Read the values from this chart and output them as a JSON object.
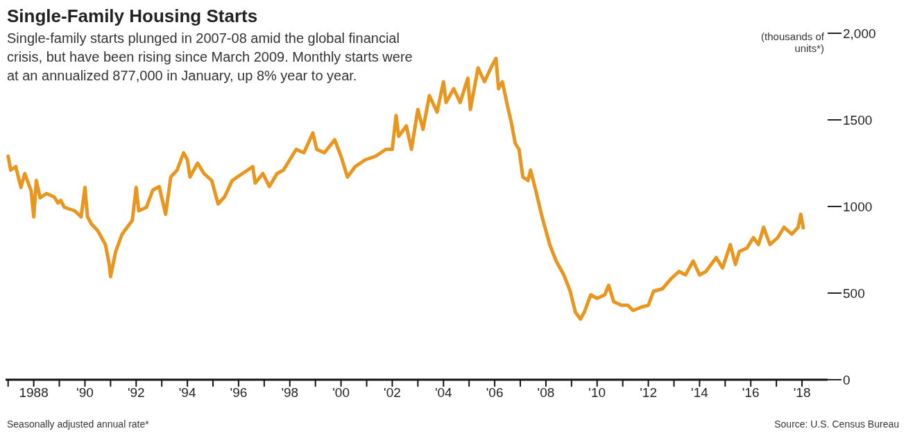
{
  "chart_data": {
    "type": "line",
    "title": "Single-Family Housing Starts",
    "subtitle": "Single-family starts plunged in 2007-08 amid the global financial crisis, but have been rising since March 2009. Monthly starts were at an annualized 877,000 in January, up 8% year to year.",
    "ylabel": "(thousands of units*)",
    "annotations": [
      "Seasonally adjusted annual rate*",
      "Source: U.S. Census Bureau"
    ],
    "x": [
      1987.0,
      1987.1,
      1987.3,
      1987.5,
      1987.65,
      1987.9,
      1988.0,
      1988.1,
      1988.25,
      1988.5,
      1988.8,
      1988.95,
      1989.05,
      1989.2,
      1989.6,
      1989.85,
      1990.0,
      1990.1,
      1990.25,
      1990.5,
      1990.8,
      1990.95,
      1991.0,
      1991.2,
      1991.45,
      1991.85,
      1992.0,
      1992.1,
      1992.4,
      1992.65,
      1992.9,
      1993.15,
      1993.35,
      1993.6,
      1993.85,
      1994.0,
      1994.1,
      1994.4,
      1994.65,
      1994.95,
      1995.2,
      1995.45,
      1995.75,
      1996.15,
      1996.55,
      1996.65,
      1996.95,
      1997.2,
      1997.5,
      1997.75,
      1998.0,
      1998.25,
      1998.55,
      1998.9,
      1999.05,
      1999.35,
      1999.75,
      2000.0,
      2000.25,
      2000.55,
      2000.95,
      2001.35,
      2001.75,
      2002.0,
      2002.15,
      2002.25,
      2002.55,
      2002.75,
      2003.0,
      2003.2,
      2003.45,
      2003.75,
      2004.0,
      2004.1,
      2004.4,
      2004.65,
      2004.95,
      2005.05,
      2005.35,
      2005.6,
      2005.85,
      2006.05,
      2006.15,
      2006.3,
      2006.5,
      2006.65,
      2006.8,
      2006.95,
      2007.1,
      2007.3,
      2007.4,
      2007.6,
      2007.85,
      2008.15,
      2008.4,
      2008.7,
      2008.95,
      2009.15,
      2009.35,
      2009.5,
      2009.75,
      2010.0,
      2010.3,
      2010.45,
      2010.65,
      2010.95,
      2011.2,
      2011.4,
      2011.75,
      2012.0,
      2012.2,
      2012.55,
      2012.9,
      2013.2,
      2013.45,
      2013.75,
      2014.0,
      2014.25,
      2014.65,
      2014.9,
      2015.2,
      2015.4,
      2015.55,
      2015.85,
      2016.1,
      2016.3,
      2016.5,
      2016.75,
      2017.05,
      2017.3,
      2017.6,
      2017.85,
      2017.95,
      2018.05
    ],
    "series": [
      {
        "color": "#e8961e",
        "values": [
          1290,
          1210,
          1230,
          1110,
          1190,
          1090,
          940,
          1150,
          1050,
          1075,
          1055,
          1020,
          1035,
          995,
          975,
          940,
          1110,
          940,
          900,
          860,
          780,
          665,
          595,
          740,
          840,
          920,
          1110,
          975,
          995,
          1095,
          1115,
          955,
          1170,
          1210,
          1310,
          1270,
          1170,
          1250,
          1190,
          1150,
          1015,
          1055,
          1150,
          1190,
          1230,
          1135,
          1190,
          1115,
          1190,
          1210,
          1270,
          1330,
          1310,
          1425,
          1330,
          1310,
          1385,
          1290,
          1170,
          1230,
          1270,
          1290,
          1330,
          1330,
          1525,
          1405,
          1465,
          1330,
          1560,
          1445,
          1640,
          1545,
          1720,
          1600,
          1680,
          1600,
          1740,
          1560,
          1800,
          1720,
          1800,
          1855,
          1680,
          1720,
          1580,
          1485,
          1365,
          1330,
          1170,
          1150,
          1210,
          1095,
          940,
          780,
          685,
          605,
          510,
          390,
          350,
          390,
          490,
          470,
          490,
          545,
          450,
          430,
          430,
          400,
          420,
          430,
          510,
          525,
          585,
          625,
          605,
          685,
          605,
          625,
          705,
          645,
          780,
          665,
          740,
          760,
          820,
          780,
          880,
          780,
          820,
          880,
          840,
          880,
          955,
          877
        ]
      }
    ],
    "xlim": [
      1986.9,
      2019.0
    ],
    "xticks": [
      {
        "value": 1987,
        "label": null
      },
      {
        "value": 1988,
        "label": "1988"
      },
      {
        "value": 1989,
        "label": null
      },
      {
        "value": 1990,
        "label": "'90"
      },
      {
        "value": 1991,
        "label": null
      },
      {
        "value": 1992,
        "label": "'92"
      },
      {
        "value": 1993,
        "label": null
      },
      {
        "value": 1994,
        "label": "'94"
      },
      {
        "value": 1995,
        "label": null
      },
      {
        "value": 1996,
        "label": "'96"
      },
      {
        "value": 1997,
        "label": null
      },
      {
        "value": 1998,
        "label": "'98"
      },
      {
        "value": 1999,
        "label": null
      },
      {
        "value": 2000,
        "label": "'00"
      },
      {
        "value": 2001,
        "label": null
      },
      {
        "value": 2002,
        "label": "'02"
      },
      {
        "value": 2003,
        "label": null
      },
      {
        "value": 2004,
        "label": "'04"
      },
      {
        "value": 2005,
        "label": null
      },
      {
        "value": 2006,
        "label": "'06"
      },
      {
        "value": 2007,
        "label": null
      },
      {
        "value": 2008,
        "label": "'08"
      },
      {
        "value": 2009,
        "label": null
      },
      {
        "value": 2010,
        "label": "'10"
      },
      {
        "value": 2011,
        "label": null
      },
      {
        "value": 2012,
        "label": "'12"
      },
      {
        "value": 2013,
        "label": null
      },
      {
        "value": 2014,
        "label": "'14"
      },
      {
        "value": 2015,
        "label": null
      },
      {
        "value": 2016,
        "label": "'16"
      },
      {
        "value": 2017,
        "label": null
      },
      {
        "value": 2018,
        "label": "'18"
      }
    ],
    "ylim": [
      0,
      2000
    ],
    "yticks": [
      0,
      500,
      1000,
      1500,
      {
        "value": 2000,
        "label": "2,000"
      }
    ],
    "grid": false,
    "legend": false,
    "marker": "none",
    "line_style": "solid"
  }
}
